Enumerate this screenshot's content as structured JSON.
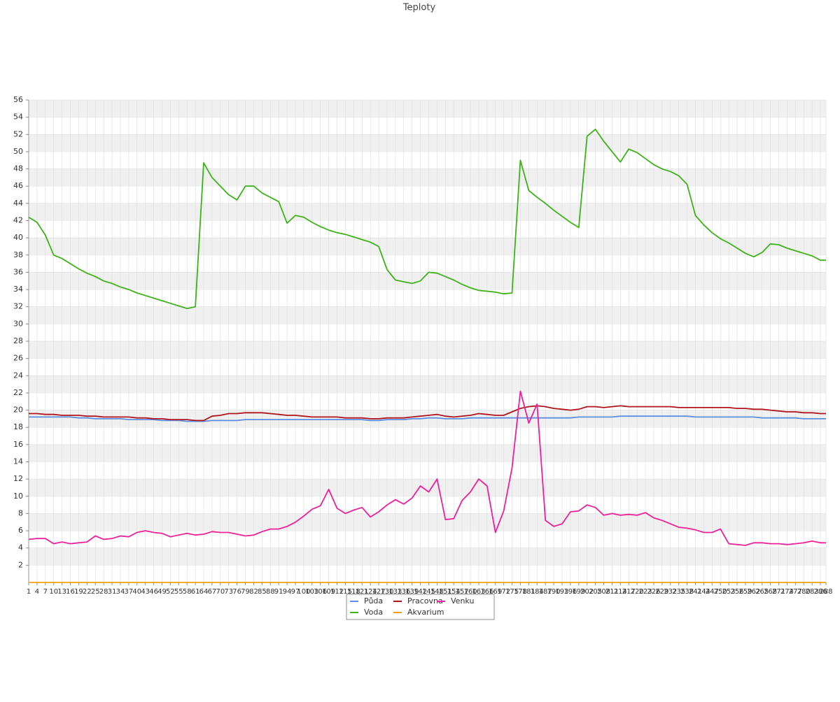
{
  "chart_data": {
    "type": "line",
    "title": "Teploty",
    "x": [
      1,
      4,
      7,
      10,
      13,
      16,
      19,
      22,
      25,
      28,
      31,
      34,
      37,
      40,
      43,
      46,
      49,
      52,
      55,
      58,
      61,
      64,
      67,
      70,
      73,
      76,
      79,
      82,
      85,
      88,
      91,
      94,
      97,
      100,
      103,
      106,
      109,
      112,
      115,
      118,
      121,
      124,
      127,
      130,
      133,
      136,
      139,
      142,
      145,
      148,
      151,
      154,
      157,
      160,
      163,
      166,
      169,
      172,
      175,
      178,
      181,
      184,
      187,
      190,
      193,
      196,
      199,
      202,
      205,
      208,
      211,
      214,
      217,
      220,
      223,
      226,
      229,
      232,
      235,
      238,
      241,
      244,
      247,
      250,
      253,
      256,
      259,
      262,
      265,
      268,
      271,
      274,
      277,
      280,
      283,
      286,
      288
    ],
    "xlim": [
      1,
      288
    ],
    "ylim": [
      0,
      56
    ],
    "yticks": [
      2,
      4,
      6,
      8,
      10,
      12,
      14,
      16,
      18,
      20,
      22,
      24,
      26,
      28,
      30,
      32,
      34,
      36,
      38,
      40,
      42,
      44,
      46,
      48,
      50,
      52,
      54,
      56
    ],
    "grid": true,
    "series": [
      {
        "name": "Půda",
        "color": "#5b8de0",
        "values": [
          19.2,
          19.2,
          19.2,
          19.2,
          19.2,
          19.2,
          19.1,
          19.1,
          19.0,
          19.0,
          19.0,
          19.0,
          18.9,
          18.9,
          18.9,
          18.9,
          18.8,
          18.8,
          18.8,
          18.7,
          18.7,
          18.7,
          18.8,
          18.8,
          18.8,
          18.8,
          18.9,
          18.9,
          18.9,
          18.9,
          18.9,
          18.9,
          18.9,
          18.9,
          18.9,
          18.9,
          18.9,
          18.9,
          18.9,
          18.9,
          18.9,
          18.8,
          18.8,
          18.9,
          18.9,
          18.9,
          19.0,
          19.0,
          19.1,
          19.1,
          19.0,
          19.0,
          19.0,
          19.1,
          19.1,
          19.1,
          19.1,
          19.1,
          19.1,
          19.1,
          19.1,
          19.1,
          19.1,
          19.1,
          19.1,
          19.1,
          19.2,
          19.2,
          19.2,
          19.2,
          19.2,
          19.3,
          19.3,
          19.3,
          19.3,
          19.3,
          19.3,
          19.3,
          19.3,
          19.3,
          19.2,
          19.2,
          19.2,
          19.2,
          19.2,
          19.2,
          19.2,
          19.2,
          19.1,
          19.1,
          19.1,
          19.1,
          19.1,
          19.0,
          19.0,
          19.0,
          19.0
        ]
      },
      {
        "name": "Pracovna",
        "color": "#b0141c",
        "values": [
          19.6,
          19.6,
          19.5,
          19.5,
          19.4,
          19.4,
          19.4,
          19.3,
          19.3,
          19.2,
          19.2,
          19.2,
          19.2,
          19.1,
          19.1,
          19.0,
          19.0,
          18.9,
          18.9,
          18.9,
          18.8,
          18.8,
          19.3,
          19.4,
          19.6,
          19.6,
          19.7,
          19.7,
          19.7,
          19.6,
          19.5,
          19.4,
          19.4,
          19.3,
          19.2,
          19.2,
          19.2,
          19.2,
          19.1,
          19.1,
          19.1,
          19.0,
          19.0,
          19.1,
          19.1,
          19.1,
          19.2,
          19.3,
          19.4,
          19.5,
          19.3,
          19.2,
          19.3,
          19.4,
          19.6,
          19.5,
          19.4,
          19.4,
          19.8,
          20.2,
          20.4,
          20.5,
          20.4,
          20.2,
          20.1,
          20.0,
          20.1,
          20.4,
          20.4,
          20.3,
          20.4,
          20.5,
          20.4,
          20.4,
          20.4,
          20.4,
          20.4,
          20.4,
          20.3,
          20.3,
          20.3,
          20.3,
          20.3,
          20.3,
          20.3,
          20.2,
          20.2,
          20.1,
          20.1,
          20.0,
          19.9,
          19.8,
          19.8,
          19.7,
          19.7,
          19.6,
          19.6
        ]
      },
      {
        "name": "Venku",
        "color": "#f0209a",
        "values": [
          5.0,
          5.1,
          5.1,
          4.5,
          4.7,
          4.5,
          4.6,
          4.7,
          5.4,
          5.0,
          5.1,
          5.4,
          5.3,
          5.8,
          6.0,
          5.8,
          5.7,
          5.3,
          5.5,
          5.7,
          5.5,
          5.6,
          5.9,
          5.8,
          5.8,
          5.6,
          5.4,
          5.5,
          5.9,
          6.2,
          6.2,
          6.5,
          7.0,
          7.7,
          8.5,
          8.9,
          10.8,
          8.6,
          8.0,
          8.4,
          8.7,
          7.6,
          8.2,
          9.0,
          9.6,
          9.1,
          9.8,
          11.2,
          10.5,
          12.0,
          7.3,
          7.4,
          9.5,
          10.5,
          12.0,
          11.2,
          5.8,
          8.3,
          13.3,
          22.2,
          18.5,
          20.7,
          7.2,
          6.5,
          6.8,
          8.2,
          8.3,
          9.0,
          8.7,
          7.8,
          8.0,
          7.8,
          7.9,
          7.8,
          8.1,
          7.5,
          7.2,
          6.8,
          6.4,
          6.3,
          6.1,
          5.8,
          5.8,
          6.2,
          4.5,
          4.4,
          4.3,
          4.6,
          4.6,
          4.5,
          4.5,
          4.4,
          4.5,
          4.6,
          4.8,
          4.6,
          4.6
        ]
      },
      {
        "name": "Voda",
        "color": "#3cb317",
        "values": [
          42.4,
          41.8,
          40.3,
          38.0,
          37.6,
          37.0,
          36.4,
          35.9,
          35.5,
          35.0,
          34.7,
          34.3,
          34.0,
          33.6,
          33.3,
          33.0,
          32.7,
          32.4,
          32.1,
          31.8,
          32.0,
          48.7,
          47.0,
          46.0,
          45.0,
          44.4,
          46.0,
          46.0,
          45.2,
          44.7,
          44.2,
          41.7,
          42.6,
          42.4,
          41.8,
          41.3,
          40.9,
          40.6,
          40.4,
          40.1,
          39.8,
          39.5,
          39.0,
          36.3,
          35.1,
          34.9,
          34.7,
          35.0,
          36.0,
          35.9,
          35.5,
          35.1,
          34.6,
          34.2,
          33.9,
          33.8,
          33.7,
          33.5,
          33.6,
          49.0,
          45.5,
          44.7,
          44.0,
          43.2,
          42.5,
          41.8,
          41.2,
          51.8,
          52.6,
          51.2,
          50.0,
          48.8,
          50.3,
          49.9,
          49.2,
          48.5,
          48.0,
          47.7,
          47.2,
          46.2,
          42.6,
          41.5,
          40.6,
          39.9,
          39.4,
          38.8,
          38.2,
          37.8,
          38.3,
          39.3,
          39.2,
          38.8,
          38.5,
          38.2,
          37.9,
          37.4,
          37.4
        ]
      },
      {
        "name": "Akvarium",
        "color": "#f0a010",
        "values": [
          0,
          0,
          0,
          0,
          0,
          0,
          0,
          0,
          0,
          0,
          0,
          0,
          0,
          0,
          0,
          0,
          0,
          0,
          0,
          0,
          0,
          0,
          0,
          0,
          0,
          0,
          0,
          0,
          0,
          0,
          0,
          0,
          0,
          0,
          0,
          0,
          0,
          0,
          0,
          0,
          0,
          0,
          0,
          0,
          0,
          0,
          0,
          0,
          0,
          0,
          0,
          0,
          0,
          0,
          0,
          0,
          0,
          0,
          0,
          0,
          0,
          0,
          0,
          0,
          0,
          0,
          0,
          0,
          0,
          0,
          0,
          0,
          0,
          0,
          0,
          0,
          0,
          0,
          0,
          0,
          0,
          0,
          0,
          0,
          0,
          0,
          0,
          0,
          0,
          0,
          0,
          0,
          0,
          0,
          0,
          0,
          0
        ]
      }
    ]
  }
}
